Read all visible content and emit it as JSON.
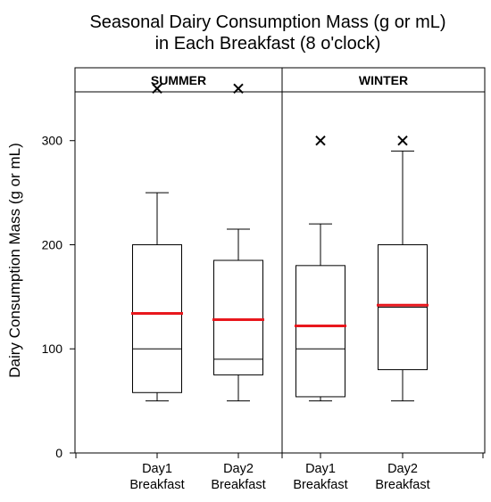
{
  "chart_data": {
    "type": "box",
    "title_lines": [
      "Seasonal Dairy Consumption Mass (g or mL)",
      "in Each Breakfast (8 o'clock)"
    ],
    "ylabel": "Dairy Consumption Mass (g or mL)",
    "xlabel": "",
    "ylim": [
      0,
      370
    ],
    "yticks": [
      0,
      100,
      200,
      300
    ],
    "grid": false,
    "panels": [
      {
        "label": "SUMMER",
        "groups": [
          {
            "label": [
              "Day1",
              "Breakfast"
            ],
            "whisker_low": 50,
            "q1": 58,
            "median": 100,
            "mean": 134,
            "q3": 200,
            "whisker_high": 250,
            "outliers": [
              350
            ]
          },
          {
            "label": [
              "Day2",
              "Breakfast"
            ],
            "whisker_low": 50,
            "q1": 75,
            "median": 90,
            "mean": 128,
            "q3": 185,
            "whisker_high": 215,
            "outliers": [
              350
            ]
          }
        ]
      },
      {
        "label": "WINTER",
        "groups": [
          {
            "label": [
              "Day1",
              "Breakfast"
            ],
            "whisker_low": 50,
            "q1": 54,
            "median": 100,
            "mean": 122,
            "q3": 180,
            "whisker_high": 220,
            "outliers": [
              300
            ]
          },
          {
            "label": [
              "Day2",
              "Breakfast"
            ],
            "whisker_low": 50,
            "q1": 80,
            "median": 140,
            "mean": 142,
            "q3": 200,
            "whisker_high": 290,
            "outliers": [
              300
            ]
          }
        ]
      }
    ],
    "colors": {
      "mean_line": "#e8171d",
      "box": "#000000"
    }
  }
}
